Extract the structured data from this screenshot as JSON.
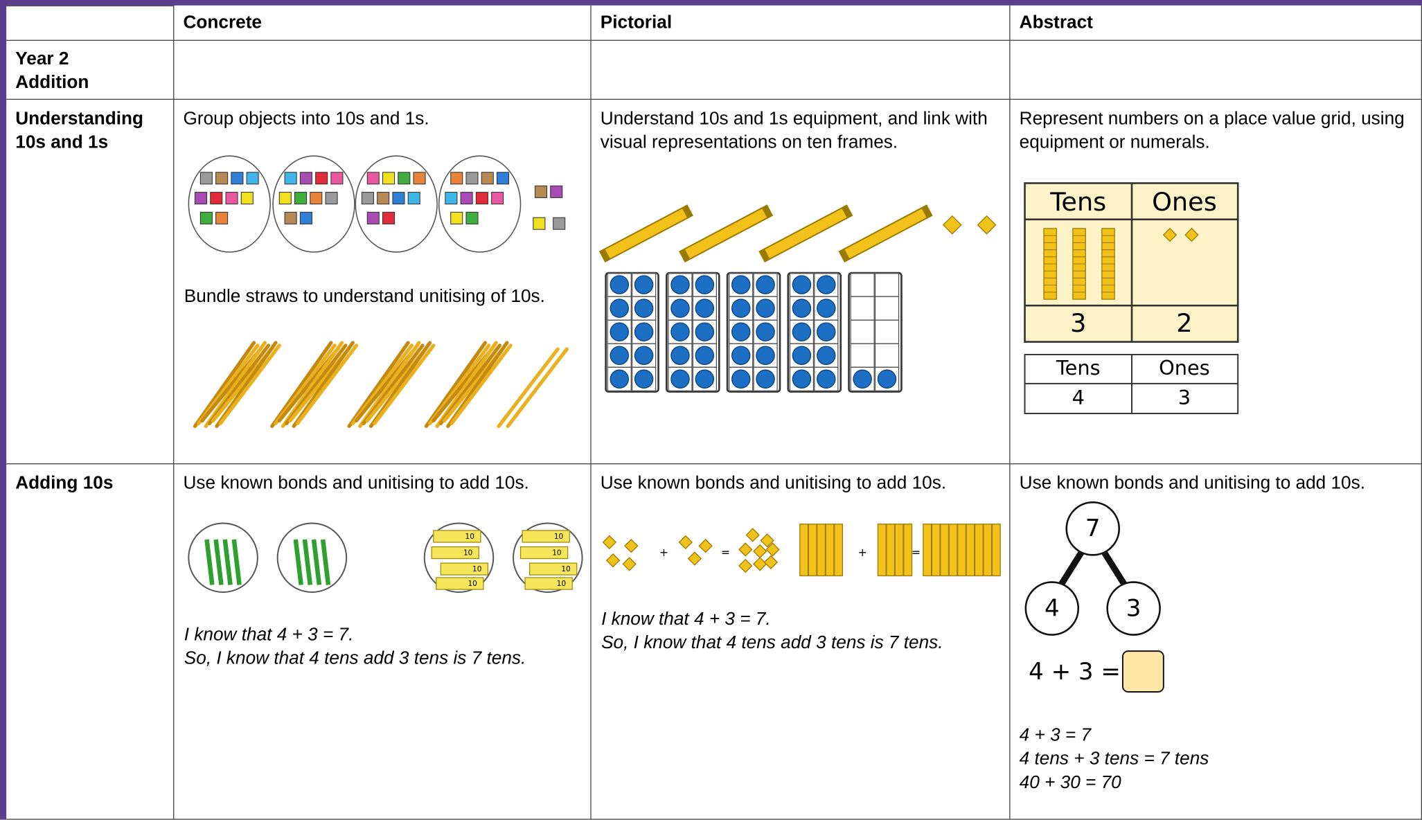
{
  "header": {
    "columns": [
      "Concrete",
      "Pictorial",
      "Abstract"
    ]
  },
  "title": "Year 2\nAddition",
  "rows": [
    {
      "label": "Understanding\n10s and 1s",
      "concrete": {
        "text": "Group objects into 10s and 1s.",
        "text_2": "Bundle straws to understand unitising of 10s."
      },
      "pictorial": {
        "text": "Understand 10s and 1s equipment, and link with visual representations on ten frames."
      },
      "abstract": {
        "text": "Represent numbers on a place value grid, using equipment or numerals.",
        "grid_1": {
          "headers": [
            "Tens",
            "Ones"
          ],
          "values": [
            "3",
            "2"
          ]
        },
        "grid_2": {
          "headers": [
            "Tens",
            "Ones"
          ],
          "values": [
            "4",
            "3"
          ]
        }
      }
    },
    {
      "label": "Adding 10s",
      "concrete": {
        "text": "Use known bonds and unitising to add 10s.",
        "box_label": "10",
        "lines": [
          "I know that 4 + 3 = 7.",
          "So, I know that 4 tens add 3 tens is 7 tens."
        ]
      },
      "pictorial": {
        "text": "Use known bonds and unitising to add 10s.",
        "symbols": [
          "+",
          "=",
          "+",
          "="
        ],
        "lines": [
          "I know that 4 + 3 = 7.",
          "So, I know that 4 tens add 3 tens is 7 tens."
        ]
      },
      "abstract": {
        "text": "Use known bonds and unitising to add 10s.",
        "bond": {
          "whole": "7",
          "parts": [
            "4",
            "3"
          ]
        },
        "equation": "4 + 3 =",
        "lines": [
          "4 + 3 = 7",
          "4 tens + 3 tens = 7 tens",
          "40 + 30 = 70"
        ]
      }
    }
  ]
}
